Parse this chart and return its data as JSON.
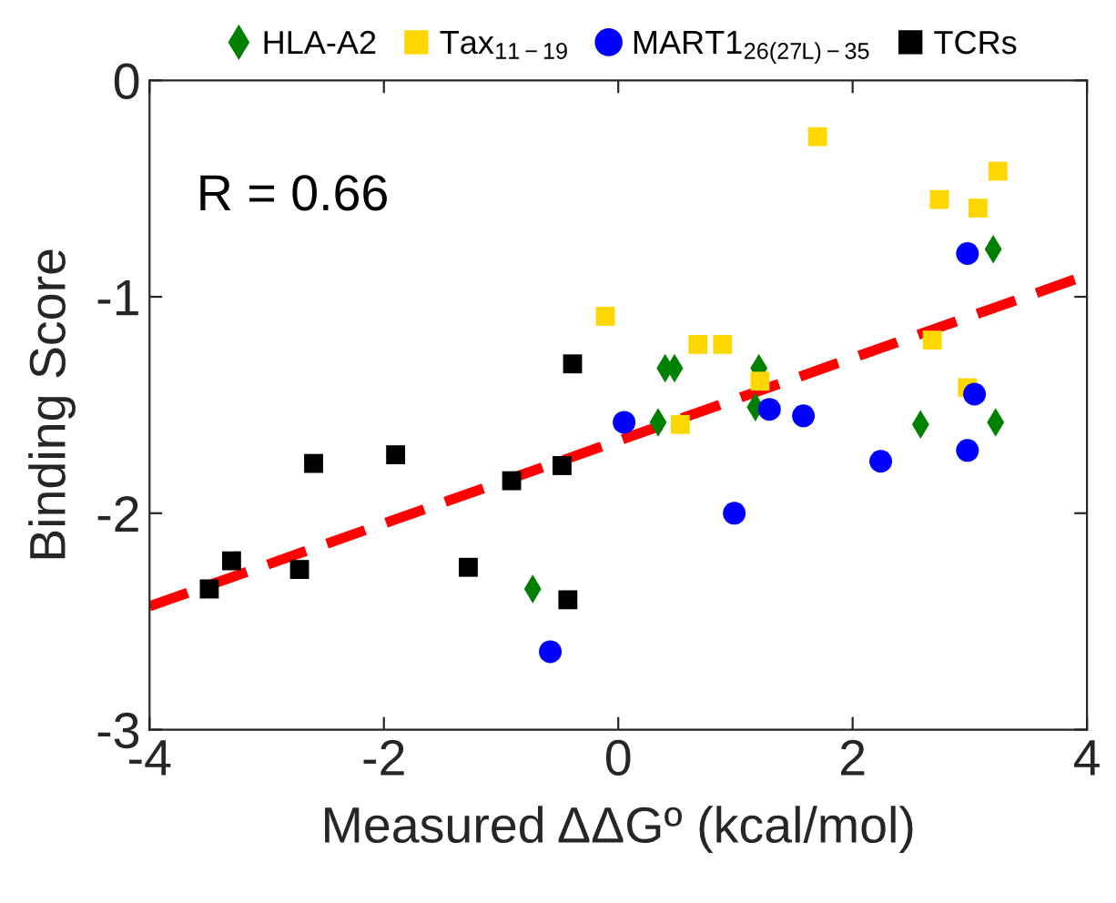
{
  "chart_data": {
    "type": "scatter",
    "xlabel": "Measured ΔΔGº (kcal/mol)",
    "ylabel": "Binding Score",
    "annotations": [
      "R = 0.66"
    ],
    "xlim": [
      -4,
      4
    ],
    "ylim": [
      -3,
      0
    ],
    "xticks": [
      -4,
      -2,
      0,
      2,
      4
    ],
    "yticks": [
      -3,
      -2,
      -1,
      0
    ],
    "grid": false,
    "legend": "top",
    "series": [
      {
        "name": "HLA-A2",
        "color": "#008000",
        "marker": "diamond",
        "x": [
          -0.73,
          0.34,
          0.4,
          0.48,
          1.17,
          1.2,
          2.58,
          3.2,
          3.22
        ],
        "values": [
          -2.35,
          -1.58,
          -1.33,
          -1.33,
          -1.51,
          -1.33,
          -1.59,
          -0.78,
          -1.58
        ]
      },
      {
        "name": "Tax$_{11−19}$",
        "color": "#ffd700",
        "marker": "square",
        "x": [
          -0.11,
          0.53,
          0.68,
          0.89,
          1.21,
          1.7,
          2.68,
          2.74,
          2.98,
          3.07,
          3.24
        ],
        "values": [
          -1.09,
          -1.59,
          -1.22,
          -1.22,
          -1.39,
          -0.26,
          -1.2,
          -0.55,
          -1.42,
          -0.59,
          -0.42
        ]
      },
      {
        "name": "MART1$_{26(27L)−35}$",
        "color": "#0000ff",
        "marker": "circle",
        "x": [
          -0.58,
          0.05,
          0.99,
          1.29,
          1.58,
          2.24,
          2.98,
          2.98,
          3.04
        ],
        "values": [
          -2.64,
          -1.58,
          -2.0,
          -1.52,
          -1.55,
          -1.76,
          -0.8,
          -1.71,
          -1.45
        ]
      },
      {
        "name": "TCRs",
        "color": "#000000",
        "marker": "square",
        "x": [
          -3.49,
          -3.3,
          -2.72,
          -2.6,
          -1.9,
          -1.28,
          -0.91,
          -0.48,
          -0.43,
          -0.39
        ],
        "values": [
          -2.35,
          -2.22,
          -2.26,
          -1.77,
          -1.73,
          -2.25,
          -1.85,
          -1.78,
          -2.4,
          -1.31
        ]
      },
      {
        "type": "line",
        "color": "#ff0000",
        "line_style": "dashed",
        "marker": "none",
        "x": [
          -4,
          4
        ],
        "values": [
          -2.43,
          -0.9
        ]
      }
    ]
  }
}
